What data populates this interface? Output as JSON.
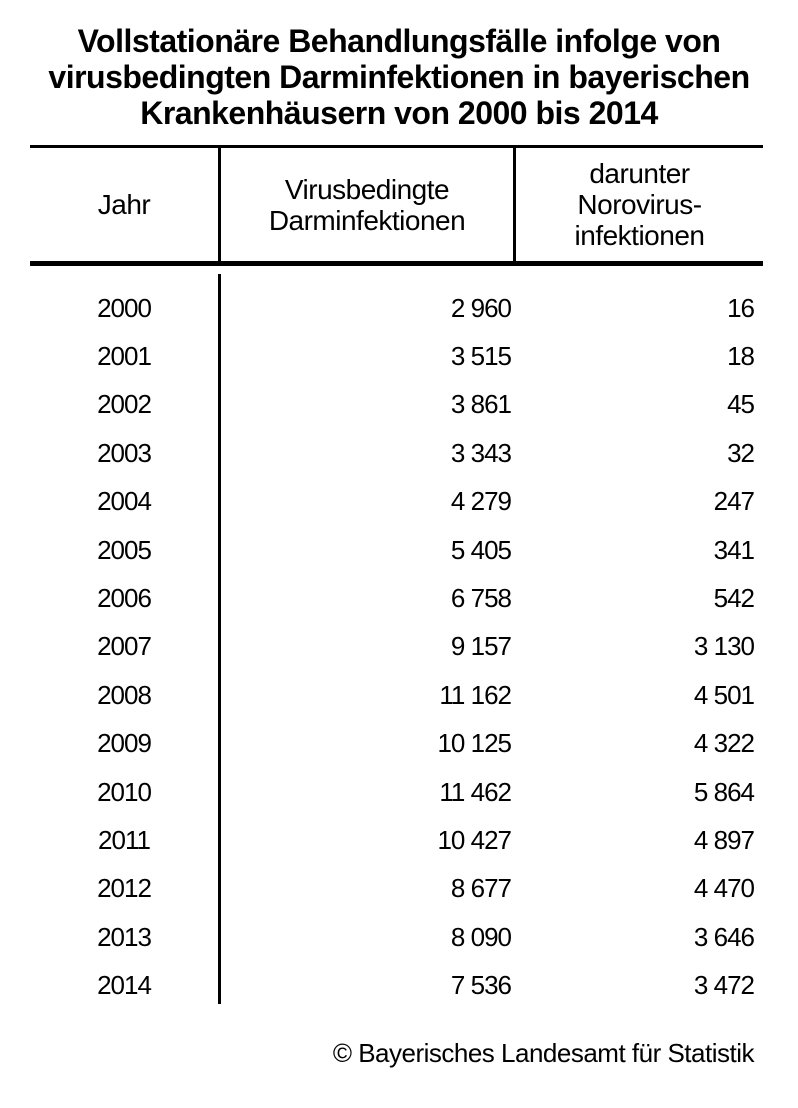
{
  "page": {
    "background_color": "#ffffff",
    "text_color": "#000000"
  },
  "title": "Vollstationäre Behandlungsfälle infolge von\nvirusbedingten Darminfektionen in bayerischen\nKrankenhäusern von 2000 bis 2014",
  "table": {
    "columns": [
      {
        "label": "Jahr"
      },
      {
        "label": "Virusbedingte\nDarminfektionen"
      },
      {
        "label": "darunter\nNorovirus-\ninfektionen"
      }
    ],
    "rows": [
      {
        "year": "2000",
        "infections": "2 960",
        "norovirus": "16"
      },
      {
        "year": "2001",
        "infections": "3 515",
        "norovirus": "18"
      },
      {
        "year": "2002",
        "infections": "3 861",
        "norovirus": "45"
      },
      {
        "year": "2003",
        "infections": "3 343",
        "norovirus": "32"
      },
      {
        "year": "2004",
        "infections": "4 279",
        "norovirus": "247"
      },
      {
        "year": "2005",
        "infections": "5 405",
        "norovirus": "341"
      },
      {
        "year": "2006",
        "infections": "6 758",
        "norovirus": "542"
      },
      {
        "year": "2007",
        "infections": "9 157",
        "norovirus": "3 130"
      },
      {
        "year": "2008",
        "infections": "11 162",
        "norovirus": "4 501"
      },
      {
        "year": "2009",
        "infections": "10 125",
        "norovirus": "4 322"
      },
      {
        "year": "2010",
        "infections": "11 462",
        "norovirus": "5 864"
      },
      {
        "year": "2011",
        "infections": "10 427",
        "norovirus": "4 897"
      },
      {
        "year": "2012",
        "infections": "8 677",
        "norovirus": "4 470"
      },
      {
        "year": "2013",
        "infections": "8 090",
        "norovirus": "3 646"
      },
      {
        "year": "2014",
        "infections": "7 536",
        "norovirus": "3 472"
      }
    ]
  },
  "footer": {
    "copyright": "© Bayerisches Landesamt für Statistik"
  },
  "chart_data": {
    "type": "table",
    "title": "Vollstationäre Behandlungsfälle infolge von virusbedingten Darminfektionen in bayerischen Krankenhäusern von 2000 bis 2014",
    "columns": [
      "Jahr",
      "Virusbedingte Darminfektionen",
      "darunter Norovirusinfektionen"
    ],
    "rows": [
      [
        2000,
        2960,
        16
      ],
      [
        2001,
        3515,
        18
      ],
      [
        2002,
        3861,
        45
      ],
      [
        2003,
        3343,
        32
      ],
      [
        2004,
        4279,
        247
      ],
      [
        2005,
        5405,
        341
      ],
      [
        2006,
        6758,
        542
      ],
      [
        2007,
        9157,
        3130
      ],
      [
        2008,
        11162,
        4501
      ],
      [
        2009,
        10125,
        4322
      ],
      [
        2010,
        11462,
        5864
      ],
      [
        2011,
        10427,
        4897
      ],
      [
        2012,
        8677,
        4470
      ],
      [
        2013,
        8090,
        3646
      ],
      [
        2014,
        7536,
        3472
      ]
    ],
    "number_format": "space as thousands separator",
    "source": "© Bayerisches Landesamt für Statistik"
  }
}
